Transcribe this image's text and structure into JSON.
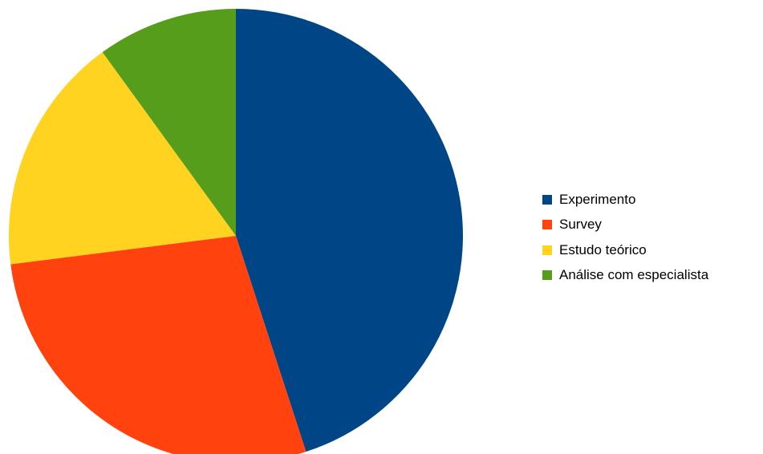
{
  "chart_data": {
    "type": "pie",
    "title": "",
    "series": [
      {
        "name": "Experimento",
        "value": 45,
        "color": "#004586"
      },
      {
        "name": "Survey",
        "value": 28,
        "color": "#ff420e"
      },
      {
        "name": "Estudo teórico",
        "value": 17,
        "color": "#ffd320"
      },
      {
        "name": "Análise com especialista",
        "value": 10,
        "color": "#579d1c"
      }
    ],
    "legend_position": "right"
  }
}
